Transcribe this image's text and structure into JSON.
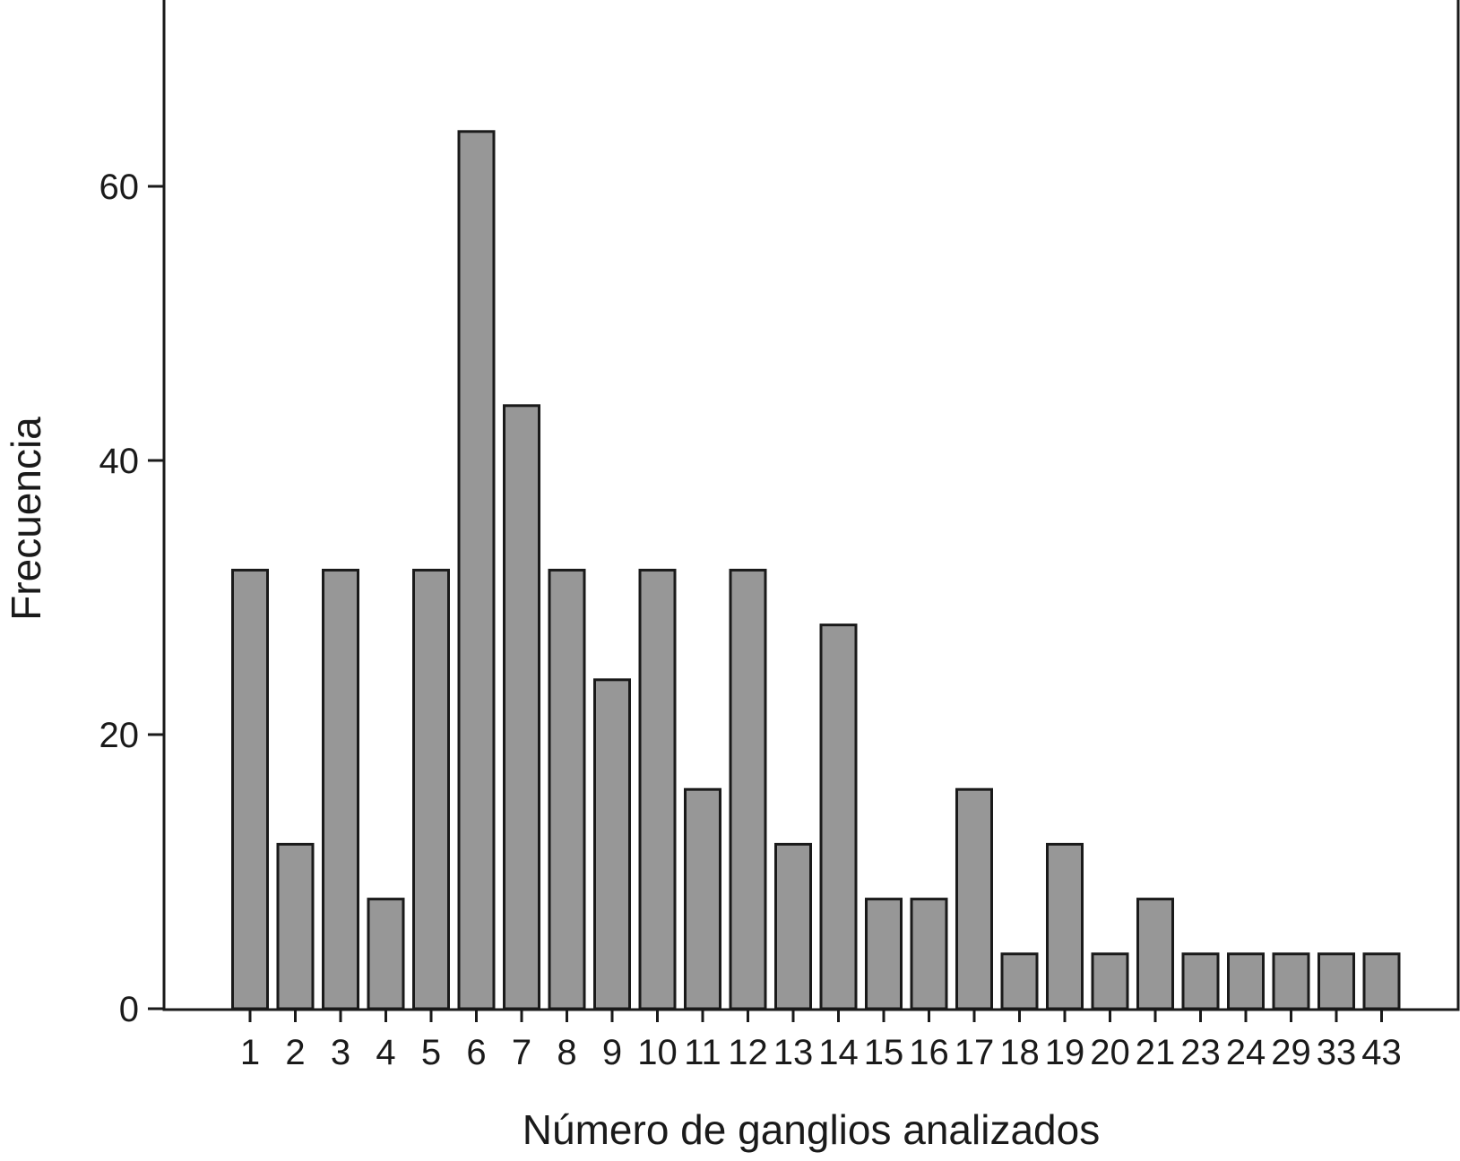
{
  "chart_data": {
    "type": "bar",
    "title": "",
    "xlabel": "Número de ganglios analizados",
    "ylabel": "Frecuencia",
    "categories": [
      "1",
      "2",
      "3",
      "4",
      "5",
      "6",
      "7",
      "8",
      "9",
      "10",
      "11",
      "12",
      "13",
      "14",
      "15",
      "16",
      "17",
      "18",
      "19",
      "20",
      "21",
      "23",
      "24",
      "29",
      "33",
      "43"
    ],
    "values": [
      32,
      12,
      32,
      8,
      32,
      64,
      44,
      32,
      24,
      32,
      16,
      32,
      12,
      28,
      8,
      8,
      16,
      4,
      12,
      4,
      8,
      4,
      4,
      4,
      4,
      4
    ],
    "ylim": [
      0,
      73.6
    ],
    "yticks": [
      0,
      20,
      40,
      60
    ],
    "grid": false,
    "legend": "none",
    "colors": {
      "bar_fill": "#979797",
      "bar_stroke": "#1a1a1a",
      "axis": "#1a1a1a"
    }
  }
}
